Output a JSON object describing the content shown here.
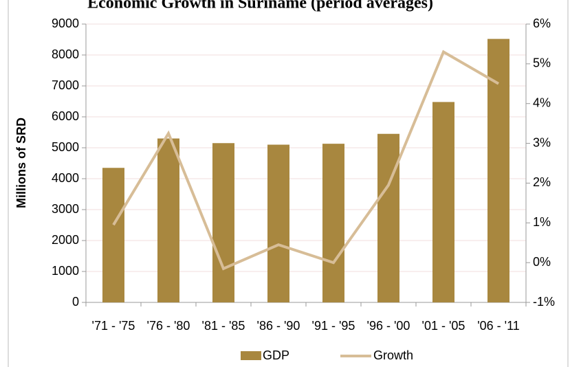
{
  "chart_data": {
    "type": "bar_line",
    "title": "Economic Growth in Suriname (period averages)",
    "y_label": "Millions of SRD",
    "categories": [
      "'71 - '75",
      "'76 - '80",
      "'81 - '85",
      "'86 - '90",
      "'91 - '95",
      "'96 - '00",
      "'01 - '05",
      "'06 - '11"
    ],
    "series": [
      {
        "name": "GDP",
        "color": "#a8873f",
        "values": [
          4350,
          5300,
          5150,
          5100,
          5130,
          5450,
          6480,
          8520
        ]
      },
      {
        "name": "Growth",
        "color": "#d7bd97",
        "axis": "y2",
        "values": [
          0.95,
          3.25,
          -0.15,
          0.45,
          0,
          1.95,
          5.3,
          4.5
        ]
      }
    ],
    "ylim": [
      0,
      9000
    ],
    "yticks": [
      0,
      1000,
      2000,
      3000,
      4000,
      5000,
      6000,
      7000,
      8000,
      9000
    ],
    "y2lim": [
      -1,
      6
    ],
    "y2ticks": [
      {
        "value": -1,
        "label": "-1%"
      },
      {
        "value": 0,
        "label": "0%"
      },
      {
        "value": 1,
        "label": "1%"
      },
      {
        "value": 2,
        "label": "2%"
      },
      {
        "value": 3,
        "label": "3%"
      },
      {
        "value": 4,
        "label": "4%"
      },
      {
        "value": 5,
        "label": "5%"
      },
      {
        "value": 6,
        "label": "6%"
      }
    ],
    "grid": true,
    "legend": "bottom"
  }
}
